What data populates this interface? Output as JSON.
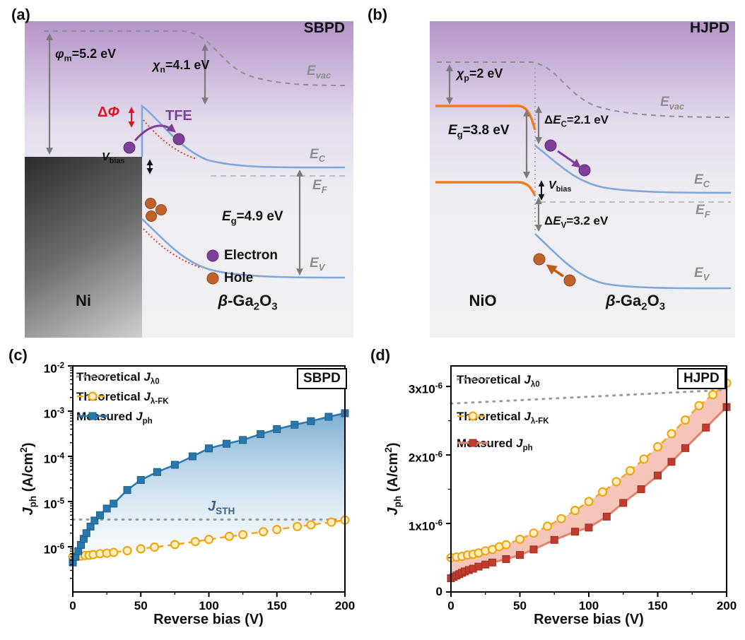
{
  "colors": {
    "electron_purple": "#7d3f98",
    "hole_orange": "#bf5b17",
    "band_blue": "#7fa8d9",
    "nio_orange": "#ee7d1e",
    "measured_blue": "#2878ae",
    "theoretical_orange": "#f2a71f",
    "measured_red": "#c23b2d",
    "gray_dotted": "#9a9a9a",
    "delta_phi_red": "#e0101f"
  },
  "panels": {
    "a": {
      "label": "(a)",
      "title": "SBPD",
      "labels": {
        "phi_m": "*φ*_{m}=5.2 eV",
        "chi_n": "*χ*_{n}=4.1 eV",
        "e_vac": "*E*_{vac}",
        "delta_phi": "Δ*Φ*",
        "tfe": "TFE",
        "v_bias": "*V*_{bias}",
        "e_c": "*E*_{C}",
        "e_f": "*E*_{F}",
        "e_g": "*E*_{g}=4.9 eV",
        "e_v": "*E*_{V}",
        "metal": "Ni",
        "semiconductor": "*β*-Ga_{2}O_{3}",
        "legend_electron": "Electron",
        "legend_hole": "Hole"
      }
    },
    "b": {
      "label": "(b)",
      "title": "HJPD",
      "labels": {
        "chi_p": "*χ*_{p}=2 eV",
        "e_vac": "*E*_{vac}",
        "e_g": "*E*_{g}=3.8 eV",
        "delta_ec": "Δ*E*_{C}=2.1 eV",
        "v_bias": "*V*_{bias}",
        "delta_ev": "Δ*E*_{V}=3.2 eV",
        "e_c": "*E*_{C}",
        "e_f": "*E*_{F}",
        "e_v": "*E*_{V}",
        "metal": "NiO",
        "semiconductor": "*β*-Ga_{2}O_{3}"
      }
    },
    "c": {
      "label": "(c)"
    },
    "d": {
      "label": "(d)"
    }
  },
  "chart_data": [
    {
      "type": "line",
      "badge": "SBPD",
      "xlabel": "Reverse bias (V)",
      "ylabel": "*J*_{ph} (A/cm^{2})",
      "annotation": "*J*_{STH}",
      "xlim": [
        0,
        200
      ],
      "x_ticks": [
        0,
        50,
        100,
        150,
        200
      ],
      "yscale": "log",
      "ylim": [
        1e-07,
        0.01
      ],
      "y_ticks": [
        {
          "v": 0.01,
          "label": "10^{-2}"
        },
        {
          "v": 0.001,
          "label": "10^{-3}"
        },
        {
          "v": 0.0001,
          "label": "10^{-4}"
        },
        {
          "v": 1e-05,
          "label": "10^{-5}"
        },
        {
          "v": 1e-06,
          "label": "10^{-6}"
        }
      ],
      "legend_position": "top-left",
      "grid": false,
      "series": [
        {
          "name": "Theoretical *J*_{λ0}",
          "x": [
            0,
            200
          ],
          "y": [
            4e-06,
            4e-06
          ]
        },
        {
          "name": "Theoretical *J*_{λ-FK}",
          "x": [
            0,
            3,
            6,
            9,
            12,
            15,
            20,
            25,
            30,
            40,
            50,
            60,
            75,
            90,
            100,
            115,
            125,
            140,
            150,
            165,
            175,
            190,
            200
          ],
          "y": [
            6e-07,
            6.1e-07,
            6.2e-07,
            6.4e-07,
            6.5e-07,
            6.7e-07,
            7e-07,
            7.2e-07,
            7.5e-07,
            8.2e-07,
            9e-07,
            9.8e-07,
            1.12e-06,
            1.3e-06,
            1.45e-06,
            1.7e-06,
            1.85e-06,
            2.15e-06,
            2.4e-06,
            2.8e-06,
            3.05e-06,
            3.5e-06,
            3.9e-06
          ]
        },
        {
          "name": "Measured *J*_{ph}",
          "x": [
            0,
            2,
            4,
            6,
            8,
            10,
            13,
            16,
            20,
            25,
            30,
            40,
            50,
            62,
            75,
            88,
            100,
            113,
            125,
            138,
            150,
            163,
            175,
            188,
            200
          ],
          "y": [
            4.5e-07,
            6e-07,
            8e-07,
            1.1e-06,
            1.5e-06,
            2e-06,
            2.8e-06,
            3.8e-06,
            5e-06,
            7e-06,
            9e-06,
            1.8e-05,
            3e-05,
            4.5e-05,
            6.5e-05,
            0.0001,
            0.00015,
            0.00019,
            0.00023,
            0.00031,
            0.0004,
            0.0005,
            0.0006,
            0.00075,
            0.0009
          ]
        }
      ]
    },
    {
      "type": "line",
      "badge": "HJPD",
      "xlabel": "Reverse bias (V)",
      "ylabel": "*J*_{ph} (A/cm^{2})",
      "annotation": "",
      "xlim": [
        0,
        200
      ],
      "x_ticks": [
        0,
        50,
        100,
        150,
        200
      ],
      "yscale": "linear",
      "ylim": [
        0,
        3.3e-06
      ],
      "y_ticks": [
        {
          "v": 0,
          "label": "0"
        },
        {
          "v": 1e-06,
          "label": "1x10^{-6}"
        },
        {
          "v": 2e-06,
          "label": "2x10^{-6}"
        },
        {
          "v": 3e-06,
          "label": "3x10^{-6}"
        }
      ],
      "legend_position": "top-left",
      "grid": false,
      "series": [
        {
          "name": "Theoretical *J*_{λ0}",
          "x": [
            0,
            200
          ],
          "y": [
            2.75e-06,
            2.95e-06
          ]
        },
        {
          "name": "Theoretical *J*_{λ-FK}",
          "x": [
            0,
            4,
            8,
            12,
            16,
            20,
            25,
            30,
            35,
            40,
            50,
            60,
            70,
            80,
            90,
            100,
            110,
            120,
            130,
            140,
            150,
            160,
            170,
            180,
            190,
            200
          ],
          "y": [
            5e-07,
            5.1e-07,
            5.2e-07,
            5.4e-07,
            5.5e-07,
            5.7e-07,
            6e-07,
            6.2e-07,
            6.6e-07,
            6.9e-07,
            7.7e-07,
            8.6e-07,
            9.6e-07,
            1.07e-06,
            1.19e-06,
            1.32e-06,
            1.46e-06,
            1.61e-06,
            1.77e-06,
            1.94e-06,
            2.12e-06,
            2.31e-06,
            2.51e-06,
            2.72e-06,
            2.88e-06,
            3.05e-06
          ]
        },
        {
          "name": "Measured *J*_{ph}",
          "x": [
            0,
            2,
            4,
            6,
            8,
            10,
            13,
            16,
            20,
            25,
            30,
            40,
            50,
            60,
            75,
            90,
            100,
            113,
            125,
            138,
            150,
            160,
            170,
            185,
            200
          ],
          "y": [
            2e-07,
            2.2e-07,
            2.4e-07,
            2.6e-07,
            2.8e-07,
            3e-07,
            3.2e-07,
            3.4e-07,
            3.7e-07,
            4e-07,
            4.3e-07,
            4.8e-07,
            5.4e-07,
            6.2e-07,
            7.6e-07,
            8.8e-07,
            9.4e-07,
            1.1e-06,
            1.3e-06,
            1.5e-06,
            1.7e-06,
            1.9e-06,
            2.1e-06,
            2.4e-06,
            2.7e-06
          ]
        }
      ]
    }
  ]
}
